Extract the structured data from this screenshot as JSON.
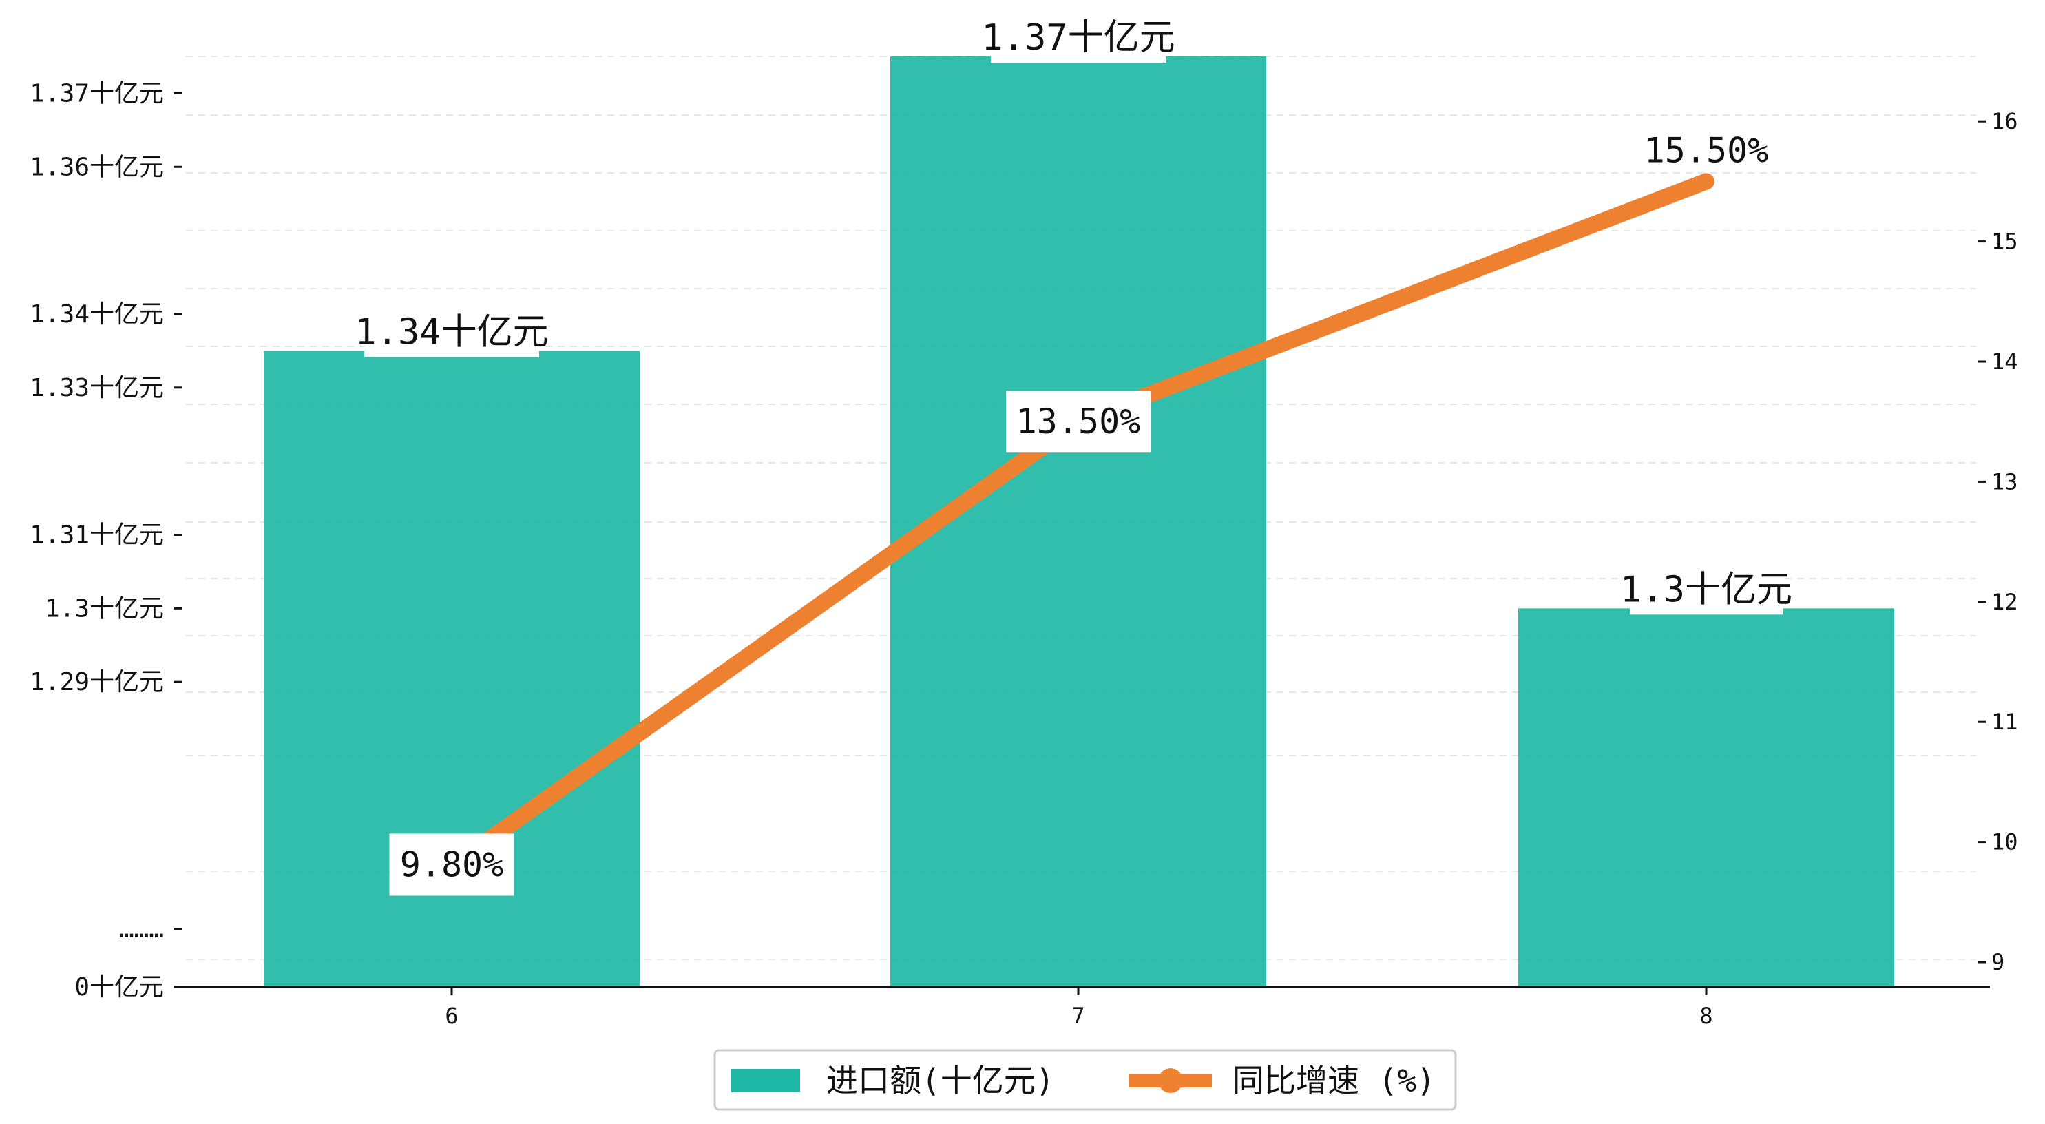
{
  "chart_data": {
    "type": "bar",
    "categories": [
      "6",
      "7",
      "8"
    ],
    "series": [
      {
        "name": "进口额(十亿元)",
        "kind": "bar",
        "axis": "left",
        "color": "#1fb8a6",
        "values": [
          1.335,
          1.375,
          1.3
        ],
        "labels": [
          "1.34十亿元",
          "1.37十亿元",
          "1.3十亿元"
        ]
      },
      {
        "name": "同比增速 (%)",
        "kind": "line",
        "axis": "right",
        "color": "#ee8130",
        "values": [
          9.8,
          13.5,
          15.5
        ],
        "labels": [
          "9.80%",
          "13.50%",
          "15.50%"
        ]
      }
    ],
    "left_axis": {
      "ticks": [
        {
          "value": 0,
          "label": "0十亿元"
        },
        {
          "value": 0.005,
          "label": "………"
        },
        {
          "value": 1.29,
          "label": "1.29十亿元"
        },
        {
          "value": 1.3,
          "label": "1.3十亿元"
        },
        {
          "value": 1.31,
          "label": "1.31十亿元"
        },
        {
          "value": 1.33,
          "label": "1.33十亿元"
        },
        {
          "value": 1.34,
          "label": "1.34十亿元"
        },
        {
          "value": 1.36,
          "label": "1.36十亿元"
        },
        {
          "value": 1.37,
          "label": "1.37十亿元"
        }
      ],
      "note": "broken axis: 0 at base, then 1.28 to 1.375"
    },
    "right_axis": {
      "ylim": [
        8.8,
        16.5
      ],
      "ticks": [
        9,
        10,
        11,
        12,
        13,
        14,
        15,
        16
      ]
    },
    "grid": "horizontal dashed",
    "legend_placement": "bottom-center"
  }
}
